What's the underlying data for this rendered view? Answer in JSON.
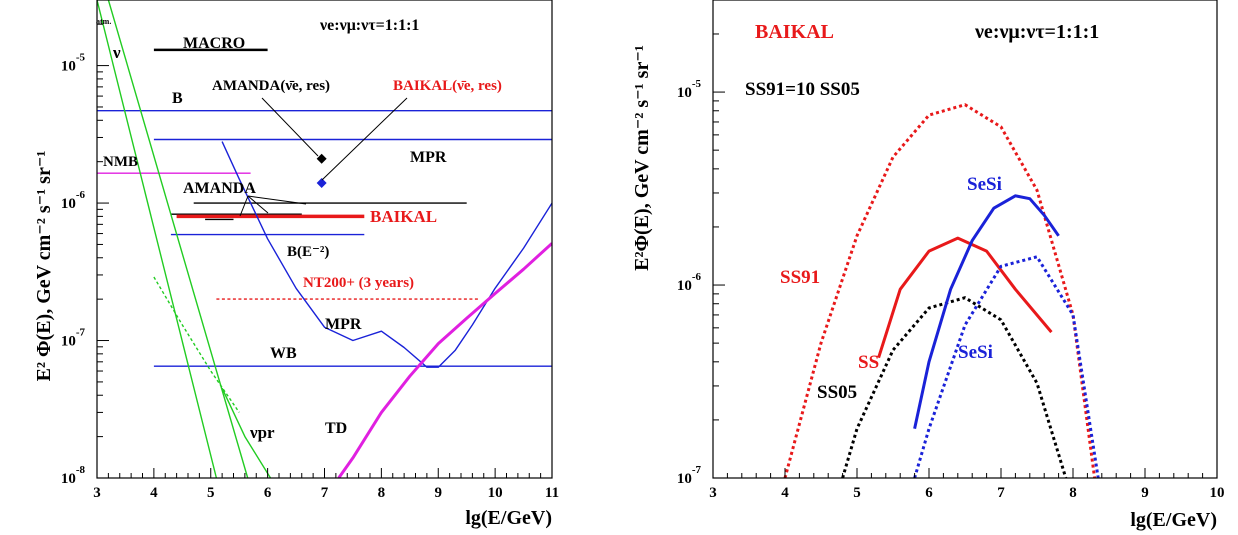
{
  "colors": {
    "black": "#000000",
    "red": "#e8191a",
    "blue": "#1a22d8",
    "green": "#22cc22",
    "magenta": "#e020e0"
  },
  "chart_data": [
    {
      "type": "line",
      "scale": "log-y",
      "xlabel": "lg(E/GeV)",
      "ylabel": "E² Φ(E), GeV cm⁻² s⁻¹ sr⁻¹",
      "xlim": [
        3,
        11
      ],
      "ylim": [
        1e-08,
        3e-05
      ],
      "x_ticks": [
        "3",
        "4",
        "5",
        "6",
        "7",
        "8",
        "9",
        "10",
        "11"
      ],
      "y_ticks": [
        {
          "base": "10",
          "exp": "-8",
          "value": 1e-08
        },
        {
          "base": "10",
          "exp": "-7",
          "value": 1e-07
        },
        {
          "base": "10",
          "exp": "-6",
          "value": 1e-06
        },
        {
          "base": "10",
          "exp": "-5",
          "value": 1e-05
        }
      ],
      "annotations": {
        "ratio": "νe:νμ:ντ=1:1:1",
        "atm": "atm.",
        "nu": "ν",
        "nu_pr": "νpr",
        "td": "TD",
        "b": "B",
        "mpr_upper": "MPR",
        "mpr_lower": "MPR",
        "nmb": "NMB",
        "macro": "MACRO",
        "amanda_res": "AMANDA(ν̄e, res)",
        "baikal_res": "BAIKAL(ν̄e, res)",
        "amanda": "AMANDA",
        "baikal": "BAIKAL",
        "be2": "B(E⁻²)",
        "nt200": "NT200+ (3 years)",
        "wb": "WB"
      },
      "series": [
        {
          "label": "MACRO",
          "color": "black",
          "style": "solid",
          "x": [
            4.0,
            6.0
          ],
          "y": [
            1.3e-05,
            1.3e-05
          ]
        },
        {
          "label": "AMANDA",
          "color": "black",
          "style": "solid",
          "x": [
            4.7,
            9.5
          ],
          "y": [
            1e-06,
            1e-06
          ]
        },
        {
          "label": "AMANDA",
          "color": "black",
          "style": "solid",
          "x": [
            4.3,
            6.6
          ],
          "y": [
            8.3e-07,
            8.3e-07
          ]
        },
        {
          "label": "AMANDA",
          "color": "black",
          "style": "solid",
          "x": [
            4.9,
            5.4
          ],
          "y": [
            7.6e-07,
            7.6e-07
          ]
        },
        {
          "label": "BAIKAL",
          "color": "red",
          "style": "solid",
          "x": [
            4.4,
            7.7
          ],
          "y": [
            8e-07,
            8e-07
          ]
        },
        {
          "label": "NT200+ (3 years)",
          "color": "red",
          "style": "dotted",
          "x": [
            5.1,
            9.7
          ],
          "y": [
            2e-07,
            2e-07
          ]
        },
        {
          "label": "B",
          "color": "blue",
          "style": "solid",
          "x": [
            3.0,
            11.0
          ],
          "y": [
            4.7e-06,
            4.7e-06
          ]
        },
        {
          "label": "MPR",
          "color": "blue",
          "style": "solid",
          "x": [
            4.0,
            11.0
          ],
          "y": [
            2.9e-06,
            2.9e-06
          ]
        },
        {
          "label": "B(E⁻²)",
          "color": "blue",
          "style": "solid",
          "x": [
            4.3,
            7.7
          ],
          "y": [
            5.9e-07,
            5.9e-07
          ]
        },
        {
          "label": "WB",
          "color": "blue",
          "style": "solid",
          "x": [
            4.0,
            11.0
          ],
          "y": [
            6.5e-08,
            6.5e-08
          ]
        },
        {
          "label": "NMB",
          "color": "magenta",
          "style": "solid",
          "x": [
            3.0,
            5.7
          ],
          "y": [
            1.65e-06,
            1.65e-06
          ]
        },
        {
          "label": "MPR",
          "color": "blue",
          "style": "solid",
          "x": [
            5.2,
            5.5,
            6.0,
            6.5,
            7.0,
            7.5,
            8.0,
            8.4,
            8.8,
            9.0,
            9.3,
            9.6,
            10.0,
            10.5,
            11.0
          ],
          "y": [
            2.8e-06,
            1.5e-06,
            5.5e-07,
            2.4e-07,
            1.25e-07,
            1e-07,
            1.17e-07,
            8.9e-08,
            6.4e-08,
            6.4e-08,
            8.5e-08,
            1.3e-07,
            2.4e-07,
            4.7e-07,
            1e-06
          ]
        },
        {
          "label": "TD",
          "color": "magenta",
          "style": "solid",
          "x": [
            7.25,
            7.5,
            8.0,
            8.5,
            9.0,
            9.5,
            10.0,
            10.5,
            11.0
          ],
          "y": [
            1e-08,
            1.4e-08,
            3e-08,
            5.5e-08,
            9.5e-08,
            1.45e-07,
            2.2e-07,
            3.3e-07,
            5.1e-07
          ]
        },
        {
          "label": "ν atm.",
          "color": "green",
          "style": "solid",
          "x": [
            3.0,
            5.1
          ],
          "y": [
            3e-05,
            1e-08
          ]
        },
        {
          "label": "ν atm.",
          "color": "green",
          "style": "solid",
          "x": [
            3.2,
            5.65
          ],
          "y": [
            3e-05,
            1e-08
          ]
        },
        {
          "label": "νpr",
          "color": "green",
          "style": "solid",
          "x": [
            5.2,
            5.6,
            6.05
          ],
          "y": [
            4.5e-08,
            2e-08,
            1e-08
          ]
        },
        {
          "label": "ν dotted",
          "color": "green",
          "style": "dotted",
          "x": [
            4.0,
            4.5,
            5.0,
            5.5
          ],
          "y": [
            2.9e-07,
            1.3e-07,
            6e-08,
            3e-08
          ]
        }
      ],
      "points": [
        {
          "label": "AMANDA(ν̄e, res)",
          "color": "black",
          "x": 6.95,
          "y": 2.1e-06
        },
        {
          "label": "BAIKAL(ν̄e, res)",
          "color": "blue",
          "x": 6.95,
          "y": 1.4e-06
        }
      ]
    },
    {
      "type": "line",
      "scale": "log-y",
      "xlabel": "lg(E/GeV)",
      "ylabel": "E²Φ(E), GeV cm⁻² s⁻¹ sr⁻¹",
      "xlim": [
        3,
        10
      ],
      "ylim": [
        1e-07,
        3e-05
      ],
      "x_ticks": [
        "3",
        "4",
        "5",
        "6",
        "7",
        "8",
        "9",
        "10"
      ],
      "y_ticks": [
        {
          "base": "10",
          "exp": "-7",
          "value": 1e-07
        },
        {
          "base": "10",
          "exp": "-6",
          "value": 1e-06
        },
        {
          "base": "10",
          "exp": "-5",
          "value": 1e-05
        }
      ],
      "annotations": {
        "baikal": "BAIKAL",
        "ratio": "νe:νμ:ντ=1:1:1",
        "ss_rel": "SS91=10 SS05"
      },
      "series": [
        {
          "label": "SS91",
          "color": "red",
          "style": "dotted",
          "x": [
            4.0,
            4.5,
            5.0,
            5.5,
            6.0,
            6.5,
            7.0,
            7.5,
            8.0,
            8.3
          ],
          "y": [
            1e-07,
            5e-07,
            1.8e-06,
            4.6e-06,
            7.6e-06,
            8.6e-06,
            6.6e-06,
            3.1e-06,
            7e-07,
            1e-07
          ]
        },
        {
          "label": "SS05",
          "color": "black",
          "style": "dotted",
          "x": [
            4.8,
            5.0,
            5.5,
            6.0,
            6.5,
            7.0,
            7.5,
            7.9
          ],
          "y": [
            1e-07,
            1.8e-07,
            4.6e-07,
            7.6e-07,
            8.6e-07,
            6.6e-07,
            3.1e-07,
            1e-07
          ]
        },
        {
          "label": "SS",
          "color": "red",
          "style": "solid",
          "x": [
            5.3,
            5.6,
            6.0,
            6.4,
            6.8,
            7.2,
            7.7
          ],
          "y": [
            4.2e-07,
            9.5e-07,
            1.5e-06,
            1.75e-06,
            1.5e-06,
            9.5e-07,
            5.7e-07
          ]
        },
        {
          "label": "SeSi",
          "color": "blue",
          "style": "solid",
          "x": [
            5.8,
            6.0,
            6.3,
            6.6,
            6.9,
            7.2,
            7.4,
            7.6,
            7.8
          ],
          "y": [
            1.8e-07,
            4e-07,
            9.5e-07,
            1.7e-06,
            2.5e-06,
            2.9e-06,
            2.8e-06,
            2.3e-06,
            1.8e-06
          ]
        },
        {
          "label": "SeSi",
          "color": "blue",
          "style": "dotted",
          "x": [
            5.8,
            6.0,
            6.5,
            7.0,
            7.5,
            8.0,
            8.35
          ],
          "y": [
            1e-07,
            1.8e-07,
            6.2e-07,
            1.25e-06,
            1.4e-06,
            7e-07,
            1e-07
          ]
        }
      ],
      "labels": [
        "SS91",
        "SS",
        "SS05",
        "SeSi",
        "SeSi"
      ]
    }
  ]
}
